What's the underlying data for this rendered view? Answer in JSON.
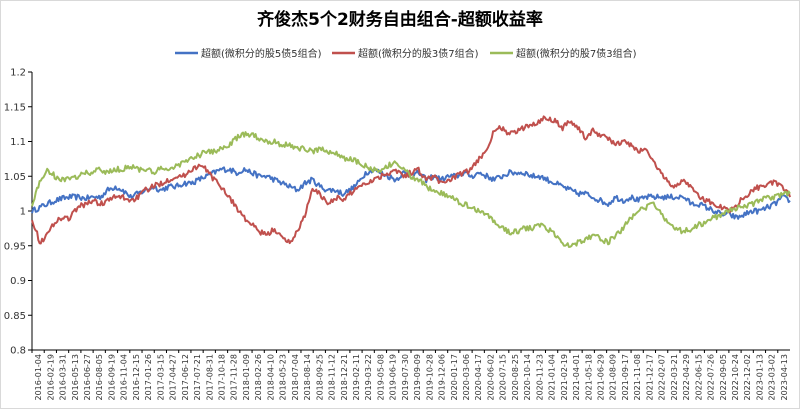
{
  "chart_data": {
    "type": "line",
    "title": "齐俊杰5个2财务自由组合-超额收益率",
    "xlabel": "",
    "ylabel": "",
    "ylim": [
      0.8,
      1.2
    ],
    "yticks": [
      "0.8",
      "0.85",
      "0.9",
      "0.95",
      "1",
      "1.05",
      "1.1",
      "1.15",
      "1.2"
    ],
    "grid": false,
    "legend_position": "top",
    "x_tick_labels": [
      "2016-01-04",
      "2016-02-19",
      "2016-03-31",
      "2016-05-13",
      "2016-06-27",
      "2016-08-05",
      "2016-09-19",
      "2016-11-04",
      "2016-12-15",
      "2017-01-26",
      "2017-03-15",
      "2017-04-27",
      "2017-06-12",
      "2017-07-21",
      "2017-08-31",
      "2017-10-18",
      "2017-11-28",
      "2018-01-09",
      "2018-02-26",
      "2018-04-10",
      "2018-05-23",
      "2018-07-04",
      "2018-08-14",
      "2018-09-25",
      "2018-11-12",
      "2018-12-21",
      "2019-02-11",
      "2019-03-22",
      "2019-05-08",
      "2019-06-19",
      "2019-07-30",
      "2019-09-09",
      "2019-10-28",
      "2019-12-06",
      "2020-01-17",
      "2020-03-06",
      "2020-04-17",
      "2020-06-02",
      "2020-07-15",
      "2020-08-25",
      "2020-10-14",
      "2020-11-23",
      "2021-01-04",
      "2021-02-19",
      "2021-04-01",
      "2021-05-18",
      "2021-06-29",
      "2021-08-09",
      "2021-09-17",
      "2021-11-08",
      "2021-12-17",
      "2022-02-07",
      "2022-03-21",
      "2022-04-29",
      "2022-06-15",
      "2022-07-26",
      "2022-09-05",
      "2022-10-24",
      "2022-12-02",
      "2023-01-13",
      "2023-03-02",
      "2023-04-13"
    ],
    "series": [
      {
        "name": "超额(微积分的股5债5组合)",
        "color": "#4472c4",
        "values": [
          1.0,
          1.005,
          1.01,
          1.015,
          1.018,
          1.02,
          1.02,
          1.018,
          1.02,
          1.02,
          1.03,
          1.035,
          1.03,
          1.02,
          1.025,
          1.03,
          1.035,
          1.03,
          1.035,
          1.035,
          1.04,
          1.04,
          1.045,
          1.05,
          1.055,
          1.06,
          1.06,
          1.055,
          1.06,
          1.055,
          1.05,
          1.05,
          1.045,
          1.04,
          1.035,
          1.03,
          1.04,
          1.045,
          1.035,
          1.03,
          1.03,
          1.025,
          1.03,
          1.04,
          1.055,
          1.06,
          1.055,
          1.05,
          1.045,
          1.055,
          1.05,
          1.055,
          1.045,
          1.05,
          1.045,
          1.05,
          1.05,
          1.055,
          1.05,
          1.055,
          1.05,
          1.045,
          1.05,
          1.055,
          1.055,
          1.055,
          1.05,
          1.05,
          1.045,
          1.04,
          1.035,
          1.03,
          1.025,
          1.025,
          1.02,
          1.015,
          1.01,
          1.02,
          1.015,
          1.02,
          1.015,
          1.02,
          1.02,
          1.02,
          1.02,
          1.02,
          1.02,
          1.01,
          1.01,
          1.005,
          1.0,
          0.995,
          0.995,
          0.99,
          0.995,
          1.0,
          1.0,
          1.005,
          1.01,
          1.02,
          1.015
        ]
      },
      {
        "name": "超额(微积分的股3债7组合)",
        "color": "#c0504d",
        "values": [
          0.99,
          0.955,
          0.965,
          0.985,
          0.99,
          0.99,
          1.005,
          1.01,
          1.015,
          1.01,
          1.015,
          1.02,
          1.02,
          1.015,
          1.02,
          1.03,
          1.035,
          1.04,
          1.045,
          1.05,
          1.05,
          1.06,
          1.065,
          1.06,
          1.045,
          1.035,
          1.02,
          1.005,
          0.99,
          0.98,
          0.97,
          0.965,
          0.975,
          0.96,
          0.955,
          0.97,
          0.995,
          1.03,
          1.025,
          1.01,
          1.02,
          1.015,
          1.025,
          1.035,
          1.04,
          1.045,
          1.05,
          1.055,
          1.06,
          1.05,
          1.055,
          1.06,
          1.045,
          1.05,
          1.04,
          1.045,
          1.05,
          1.055,
          1.06,
          1.075,
          1.09,
          1.115,
          1.12,
          1.11,
          1.115,
          1.12,
          1.125,
          1.13,
          1.135,
          1.13,
          1.12,
          1.13,
          1.12,
          1.105,
          1.115,
          1.11,
          1.105,
          1.095,
          1.1,
          1.095,
          1.085,
          1.09,
          1.07,
          1.055,
          1.04,
          1.035,
          1.045,
          1.035,
          1.02,
          1.015,
          1.01,
          1.005,
          1.0,
          1.01,
          1.02,
          1.03,
          1.035,
          1.04,
          1.04,
          1.035,
          1.02
        ]
      },
      {
        "name": "超额(微积分的股7债3组合)",
        "color": "#9bbb59",
        "values": [
          1.01,
          1.04,
          1.06,
          1.05,
          1.045,
          1.045,
          1.05,
          1.055,
          1.055,
          1.06,
          1.055,
          1.06,
          1.06,
          1.065,
          1.06,
          1.06,
          1.055,
          1.06,
          1.06,
          1.065,
          1.07,
          1.075,
          1.08,
          1.085,
          1.085,
          1.09,
          1.095,
          1.105,
          1.11,
          1.11,
          1.105,
          1.1,
          1.1,
          1.095,
          1.095,
          1.09,
          1.09,
          1.085,
          1.09,
          1.085,
          1.085,
          1.075,
          1.075,
          1.07,
          1.065,
          1.06,
          1.055,
          1.065,
          1.07,
          1.06,
          1.05,
          1.045,
          1.035,
          1.03,
          1.025,
          1.02,
          1.015,
          1.01,
          1.005,
          1.0,
          0.995,
          0.985,
          0.975,
          0.97,
          0.97,
          0.975,
          0.975,
          0.98,
          0.975,
          0.965,
          0.955,
          0.95,
          0.955,
          0.96,
          0.965,
          0.96,
          0.955,
          0.965,
          0.975,
          0.99,
          1.0,
          1.005,
          1.01,
          0.995,
          0.985,
          0.975,
          0.97,
          0.975,
          0.98,
          0.985,
          0.99,
          0.995,
          1.0,
          1.005,
          1.005,
          1.01,
          1.015,
          1.02,
          1.02,
          1.025,
          1.025
        ]
      }
    ]
  }
}
